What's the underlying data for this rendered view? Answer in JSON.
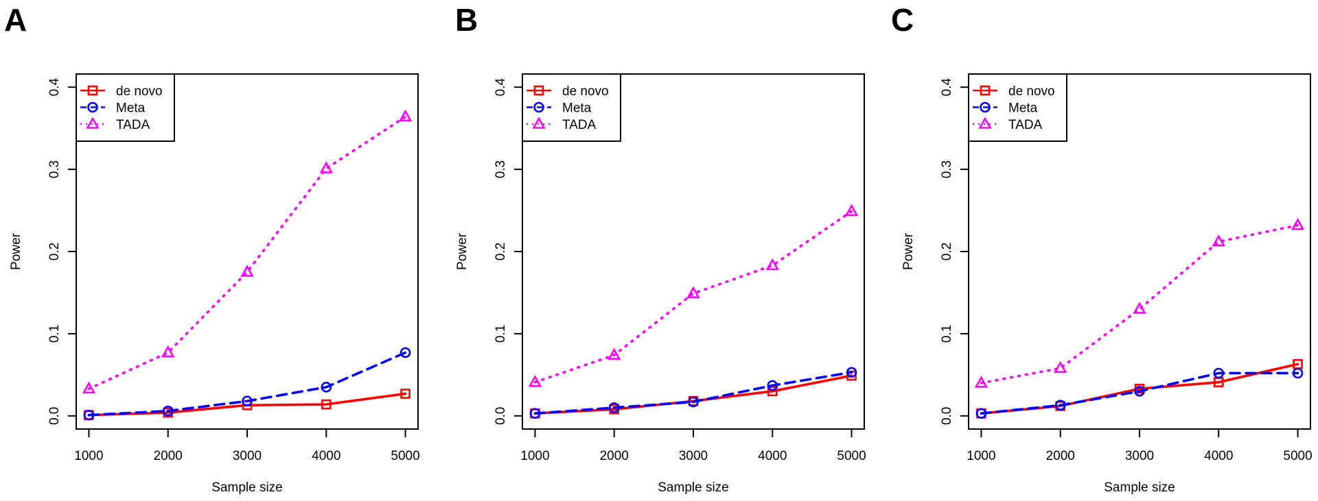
{
  "chart_data": [
    {
      "panel": "A",
      "type": "line",
      "xlabel": "Sample size",
      "ylabel": "Power",
      "x": [
        1000,
        2000,
        3000,
        4000,
        5000
      ],
      "xticks": [
        "1000",
        "2000",
        "3000",
        "4000",
        "5000"
      ],
      "yticks": [
        "0.0",
        "0.1",
        "0.2",
        "0.3",
        "0.4"
      ],
      "xlim": [
        1000,
        5000
      ],
      "ylim": [
        0,
        0.4
      ],
      "legend_position": "top-left",
      "series": [
        {
          "name": "de novo",
          "values": [
            0.001,
            0.004,
            0.013,
            0.014,
            0.027
          ]
        },
        {
          "name": "Meta",
          "values": [
            0.001,
            0.006,
            0.018,
            0.035,
            0.077
          ]
        },
        {
          "name": "TADA",
          "values": [
            0.033,
            0.077,
            0.175,
            0.301,
            0.364
          ]
        }
      ]
    },
    {
      "panel": "B",
      "type": "line",
      "xlabel": "Sample size",
      "ylabel": "Power",
      "x": [
        1000,
        2000,
        3000,
        4000,
        5000
      ],
      "xticks": [
        "1000",
        "2000",
        "3000",
        "4000",
        "5000"
      ],
      "yticks": [
        "0.0",
        "0.1",
        "0.2",
        "0.3",
        "0.4"
      ],
      "xlim": [
        1000,
        5000
      ],
      "ylim": [
        0,
        0.4
      ],
      "legend_position": "top-left",
      "series": [
        {
          "name": "de novo",
          "values": [
            0.003,
            0.008,
            0.018,
            0.03,
            0.049
          ]
        },
        {
          "name": "Meta",
          "values": [
            0.003,
            0.01,
            0.017,
            0.037,
            0.053
          ]
        },
        {
          "name": "TADA",
          "values": [
            0.041,
            0.074,
            0.149,
            0.183,
            0.249
          ]
        }
      ]
    },
    {
      "panel": "C",
      "type": "line",
      "xlabel": "Sample size",
      "ylabel": "Power",
      "x": [
        1000,
        2000,
        3000,
        4000,
        5000
      ],
      "xticks": [
        "1000",
        "2000",
        "3000",
        "4000",
        "5000"
      ],
      "yticks": [
        "0.0",
        "0.1",
        "0.2",
        "0.3",
        "0.4"
      ],
      "xlim": [
        1000,
        5000
      ],
      "ylim": [
        0,
        0.4
      ],
      "legend_position": "top-left",
      "series": [
        {
          "name": "de novo",
          "values": [
            0.003,
            0.012,
            0.033,
            0.041,
            0.063
          ]
        },
        {
          "name": "Meta",
          "values": [
            0.003,
            0.013,
            0.03,
            0.052,
            0.052
          ]
        },
        {
          "name": "TADA",
          "values": [
            0.04,
            0.058,
            0.13,
            0.212,
            0.232
          ]
        }
      ]
    }
  ],
  "colors": {
    "de_novo": "#ff0000",
    "meta": "#0000ff",
    "tada": "#ff00ff"
  }
}
